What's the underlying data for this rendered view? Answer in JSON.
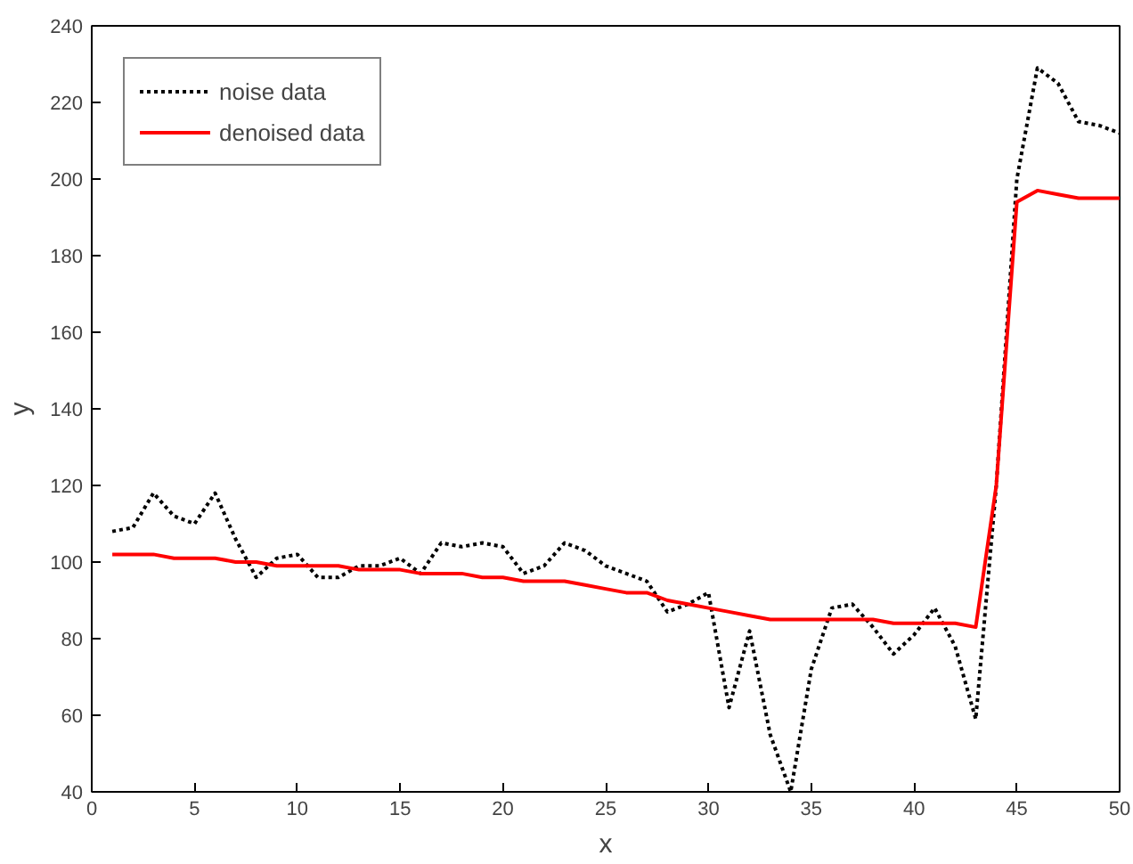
{
  "chart_data": {
    "type": "line",
    "xlabel": "x",
    "ylabel": "y",
    "x": [
      1,
      2,
      3,
      4,
      5,
      6,
      7,
      8,
      9,
      10,
      11,
      12,
      13,
      14,
      15,
      16,
      17,
      18,
      19,
      20,
      21,
      22,
      23,
      24,
      25,
      26,
      27,
      28,
      29,
      30,
      31,
      32,
      33,
      34,
      35,
      36,
      37,
      38,
      39,
      40,
      41,
      42,
      43,
      44,
      45,
      46,
      47,
      48,
      49,
      50
    ],
    "series": [
      {
        "name": "noise data",
        "color": "#000000",
        "line_style": "dotted",
        "values": [
          108,
          109,
          118,
          112,
          110,
          118,
          106,
          96,
          101,
          102,
          96,
          96,
          99,
          99,
          101,
          97,
          105,
          104,
          105,
          104,
          97,
          99,
          105,
          103,
          99,
          97,
          95,
          87,
          89,
          92,
          62,
          82,
          55,
          40,
          72,
          88,
          89,
          83,
          76,
          81,
          88,
          78,
          59,
          120,
          200,
          229,
          225,
          215,
          214,
          212
        ]
      },
      {
        "name": "denoised data",
        "color": "#ff0000",
        "line_style": "solid",
        "values": [
          102,
          102,
          102,
          101,
          101,
          101,
          100,
          100,
          99,
          99,
          99,
          99,
          98,
          98,
          98,
          97,
          97,
          97,
          96,
          96,
          95,
          95,
          95,
          94,
          93,
          92,
          92,
          90,
          89,
          88,
          87,
          86,
          85,
          85,
          85,
          85,
          85,
          85,
          84,
          84,
          84,
          84,
          83,
          120,
          194,
          197,
          196,
          195,
          195,
          195
        ]
      }
    ],
    "xlim": [
      0,
      50
    ],
    "ylim": [
      40,
      240
    ],
    "xticks": [
      0,
      5,
      10,
      15,
      20,
      25,
      30,
      35,
      40,
      45,
      50
    ],
    "yticks": [
      40,
      60,
      80,
      100,
      120,
      140,
      160,
      180,
      200,
      220,
      240
    ],
    "grid": false,
    "legend": "top left"
  }
}
